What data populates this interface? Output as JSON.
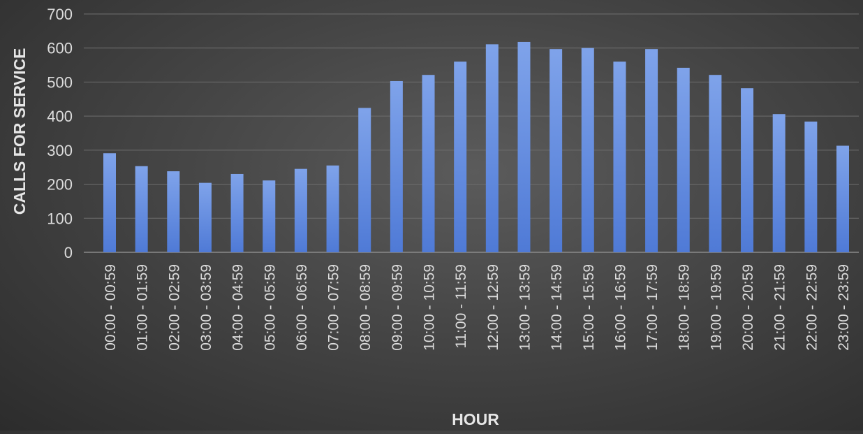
{
  "chart_data": {
    "type": "bar",
    "title": "",
    "xlabel": "HOUR",
    "ylabel": "CALLS FOR SERVICE",
    "ylim": [
      0,
      700
    ],
    "yticks": [
      0,
      100,
      200,
      300,
      400,
      500,
      600,
      700
    ],
    "grid": true,
    "legend": "none",
    "bar_color": "#4f7ad6",
    "bar_color_light": "#7fa3ea",
    "categories": [
      "00:00 - 00:59",
      "01:00 - 01:59",
      "02:00 - 02:59",
      "03:00 - 03:59",
      "04:00 - 04:59",
      "05:00 - 05:59",
      "06:00 - 06:59",
      "07:00 - 07:59",
      "08:00 - 08:59",
      "09:00 - 09:59",
      "10:00 - 10:59",
      "11:00 - 11:59",
      "12:00 - 12:59",
      "13:00 - 13:59",
      "14:00 - 14:59",
      "15:00 - 15:59",
      "16:00 - 16:59",
      "17:00 - 17:59",
      "18:00 - 18:59",
      "19:00 - 19:59",
      "20:00 - 20:59",
      "21:00 - 21:59",
      "22:00 - 22:59",
      "23:00 - 23:59"
    ],
    "values": [
      291,
      253,
      238,
      204,
      230,
      211,
      245,
      255,
      424,
      503,
      521,
      560,
      611,
      618,
      597,
      600,
      560,
      597,
      542,
      521,
      482,
      406,
      384,
      313
    ]
  }
}
